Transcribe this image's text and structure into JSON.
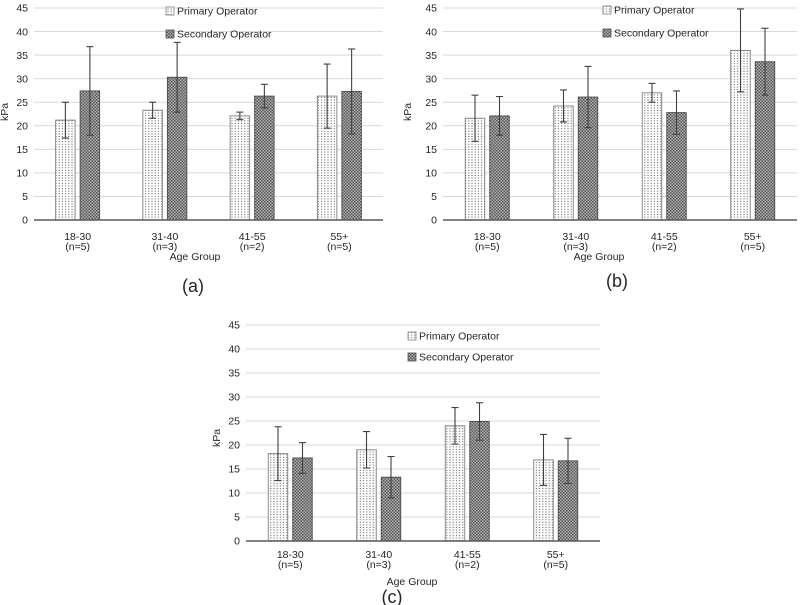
{
  "figure": {
    "background": "#ffffff",
    "panel_captions": [
      "(a)",
      "(b)",
      "(c)"
    ]
  },
  "chart_data": [
    {
      "type": "bar",
      "caption": "(a)",
      "ylabel": "kPa",
      "xlabel": "Age Group",
      "ylim": [
        0,
        45
      ],
      "ytick_step": 5,
      "grid": true,
      "legend_position": "top-inside",
      "categories": [
        "18-30",
        "31-40",
        "41-55",
        "55+"
      ],
      "category_sublabels": [
        "(n=5)",
        "(n=3)",
        "(n=2)",
        "(n=5)"
      ],
      "series": [
        {
          "name": "Primary Operator",
          "pattern": "dotted-white",
          "values": [
            21.2,
            23.3,
            22.1,
            26.3
          ],
          "errors": [
            3.8,
            1.7,
            0.8,
            6.8
          ]
        },
        {
          "name": "Secondary Operator",
          "pattern": "checker-gray",
          "values": [
            27.4,
            30.3,
            26.3,
            27.3
          ],
          "errors": [
            9.4,
            7.4,
            2.5,
            9.0
          ]
        }
      ]
    },
    {
      "type": "bar",
      "caption": "(b)",
      "ylabel": "kPa",
      "xlabel": "Age Group",
      "ylim": [
        0,
        45
      ],
      "ytick_step": 5,
      "grid": true,
      "legend_position": "top-inside",
      "categories": [
        "18-30",
        "31-40",
        "41-55",
        "55+"
      ],
      "category_sublabels": [
        "(n=5)",
        "(n=3)",
        "(n=2)",
        "(n=5)"
      ],
      "series": [
        {
          "name": "Primary Operator",
          "pattern": "dotted-white",
          "values": [
            21.6,
            24.2,
            27.0,
            36.0
          ],
          "errors": [
            4.9,
            3.4,
            2.0,
            8.8
          ]
        },
        {
          "name": "Secondary Operator",
          "pattern": "checker-gray",
          "values": [
            22.1,
            26.1,
            22.8,
            33.6
          ],
          "errors": [
            4.1,
            6.5,
            4.6,
            7.1
          ]
        }
      ]
    },
    {
      "type": "bar",
      "caption": "(c)",
      "ylabel": "kPa",
      "xlabel": "Age Group",
      "ylim": [
        0,
        45
      ],
      "ytick_step": 5,
      "grid": true,
      "legend_position": "top-inside",
      "categories": [
        "18-30",
        "31-40",
        "41-55",
        "55+"
      ],
      "category_sublabels": [
        "(n=5)",
        "(n=3)",
        "(n=2)",
        "(n=5)"
      ],
      "series": [
        {
          "name": "Primary Operator",
          "pattern": "dotted-white",
          "values": [
            18.2,
            19.0,
            24.0,
            16.9
          ],
          "errors": [
            5.6,
            3.8,
            3.8,
            5.3
          ]
        },
        {
          "name": "Secondary Operator",
          "pattern": "checker-gray",
          "values": [
            17.3,
            13.3,
            24.9,
            16.7
          ],
          "errors": [
            3.2,
            4.3,
            3.9,
            4.7
          ]
        }
      ]
    }
  ],
  "colors": {
    "grid": "#d9d9d9",
    "axis": "#595959",
    "text": "#262626",
    "error_bar": "#404040",
    "primary_bg": "#ffffff",
    "primary_dot": "#4d4d4d",
    "primary_outline": "#7f7f7f",
    "secondary_bg": "#b3b3b3",
    "secondary_dot": "#545454",
    "secondary_outline": "#4d4d4d"
  }
}
